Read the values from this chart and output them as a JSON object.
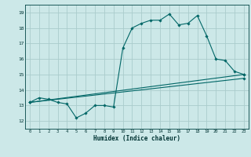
{
  "xlabel": "Humidex (Indice chaleur)",
  "xlim": [
    -0.5,
    23.5
  ],
  "ylim": [
    11.5,
    19.5
  ],
  "xticks": [
    0,
    1,
    2,
    3,
    4,
    5,
    6,
    7,
    8,
    9,
    10,
    11,
    12,
    13,
    14,
    15,
    16,
    17,
    18,
    19,
    20,
    21,
    22,
    23
  ],
  "yticks": [
    12,
    13,
    14,
    15,
    16,
    17,
    18,
    19
  ],
  "bg_color": "#cce8e8",
  "grid_color": "#aacccc",
  "line_color": "#006666",
  "line1_x": [
    0,
    1,
    2,
    3,
    4,
    5,
    6,
    7,
    8,
    9,
    10,
    11,
    12,
    13,
    14,
    15,
    16,
    17,
    18,
    19,
    20,
    21,
    22,
    23
  ],
  "line1_y": [
    13.2,
    13.5,
    13.4,
    13.2,
    13.1,
    12.2,
    12.5,
    13.0,
    13.0,
    12.9,
    16.7,
    18.0,
    18.3,
    18.5,
    18.5,
    18.9,
    18.2,
    18.3,
    18.8,
    17.5,
    16.0,
    15.9,
    15.2,
    15.0
  ],
  "line2_x": [
    0,
    23
  ],
  "line2_y": [
    13.2,
    15.0
  ],
  "line3_x": [
    0,
    23
  ],
  "line3_y": [
    13.2,
    14.75
  ]
}
